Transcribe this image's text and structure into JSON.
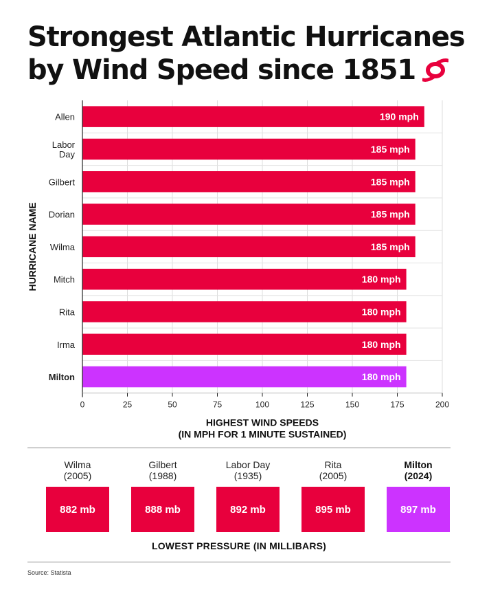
{
  "title": {
    "line1": "Strongest Atlantic Hurricanes",
    "line2": "by Wind Speed since 1851"
  },
  "chart_data": {
    "type": "bar",
    "orientation": "horizontal",
    "categories": [
      "Allen",
      "Labor Day",
      "Gilbert",
      "Dorian",
      "Wilma",
      "Mitch",
      "Rita",
      "Irma",
      "Milton"
    ],
    "values": [
      190,
      185,
      185,
      185,
      185,
      180,
      180,
      180,
      180
    ],
    "data_labels": [
      "190 mph",
      "185 mph",
      "185 mph",
      "185 mph",
      "185 mph",
      "180 mph",
      "180 mph",
      "180 mph",
      "180 mph"
    ],
    "highlight": "Milton",
    "ylabel": "HURRICANE NAME",
    "xlabel_line1": "HIGHEST WIND SPEEDS",
    "xlabel_line2": "(IN MPH FOR 1 MINUTE SUSTAINED)",
    "xlim": [
      0,
      200
    ],
    "xticks": [
      0,
      25,
      50,
      75,
      100,
      125,
      150,
      175,
      200
    ],
    "grid": true,
    "colors": {
      "bar": "#e8003d",
      "highlight": "#cc33ff"
    }
  },
  "pressure": {
    "title": "LOWEST PRESSURE (IN MILLIBARS)",
    "items": [
      {
        "name": "Wilma",
        "year": "(2005)",
        "value": "882 mb",
        "highlight": false
      },
      {
        "name": "Gilbert",
        "year": "(1988)",
        "value": "888 mb",
        "highlight": false
      },
      {
        "name": "Labor Day",
        "year": "(1935)",
        "value": "892 mb",
        "highlight": false
      },
      {
        "name": "Rita",
        "year": "(2005)",
        "value": "895 mb",
        "highlight": false
      },
      {
        "name": "Milton",
        "year": "(2024)",
        "value": "897 mb",
        "highlight": true
      }
    ]
  },
  "source": "Source: Statista",
  "icon": "hurricane-icon"
}
